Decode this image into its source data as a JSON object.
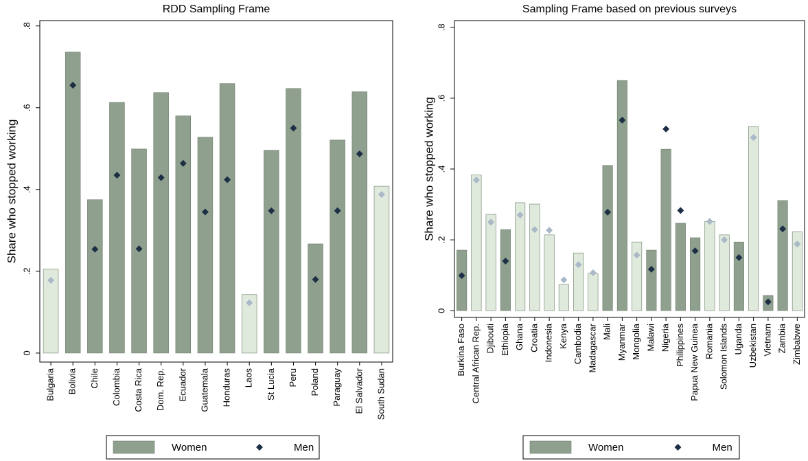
{
  "chart_data": [
    {
      "type": "bar",
      "title": "RDD Sampling Frame",
      "y_label": "Share who stopped working",
      "categories": [
        "Bulgaria",
        "Bolivia",
        "Chile",
        "Colombia",
        "Costa Rica",
        "Dom. Rep.",
        "Ecuador",
        "Guatemala",
        "Honduras",
        "Laos",
        "St Lucia",
        "Peru",
        "Poland",
        "Paraguay",
        "El Salvador",
        "South Sudan"
      ],
      "ylim": [
        -0.022,
        0.813
      ],
      "yticks": [
        0,
        {
          "value": 0.2,
          "label": ".2"
        },
        {
          "value": 0.4,
          "label": ".4"
        },
        {
          "value": 0.6,
          "label": ".6"
        },
        {
          "value": 0.8,
          "label": ".8"
        }
      ],
      "series": [
        {
          "name": "Women",
          "mark": "bar",
          "color": "#8fa18e",
          "colors": [
            "#dfeadc",
            "#8fa18e",
            "#8fa18e",
            "#8fa18e",
            "#8fa18e",
            "#8fa18e",
            "#8fa18e",
            "#8fa18e",
            "#8fa18e",
            "#dfeadc",
            "#8fa18e",
            "#8fa18e",
            "#8fa18e",
            "#8fa18e",
            "#8fa18e",
            "#dfeadc"
          ],
          "values": [
            0.205,
            0.736,
            0.375,
            0.613,
            0.499,
            0.637,
            0.58,
            0.528,
            0.659,
            0.143,
            0.496,
            0.647,
            0.267,
            0.521,
            0.639,
            0.408
          ]
        },
        {
          "name": "Men",
          "mark": "diamond",
          "color": "#1c2f45",
          "colors": [
            "#aab8c8",
            "#1c2f45",
            "#1c2f45",
            "#1c2f45",
            "#1c2f45",
            "#1c2f45",
            "#1c2f45",
            "#1c2f45",
            "#1c2f45",
            "#aab8c8",
            "#1c2f45",
            "#1c2f45",
            "#1c2f45",
            "#1c2f45",
            "#1c2f45",
            "#aab8c8"
          ],
          "values": [
            0.178,
            0.655,
            0.254,
            0.435,
            0.255,
            0.429,
            0.464,
            0.345,
            0.424,
            0.123,
            0.348,
            0.55,
            0.18,
            0.348,
            0.487,
            0.388
          ]
        }
      ]
    },
    {
      "type": "bar",
      "title": "Sampling Frame based on previous surveys",
      "y_label": "Share who stopped working",
      "categories": [
        "Burkina Faso",
        "Central African Rep.",
        "Djibouti",
        "Ethiopia",
        "Ghana",
        "Croatia",
        "Indonesia",
        "Kenya",
        "Cambodia",
        "Madagascar",
        "Mali",
        "Myanmar",
        "Mongolia",
        "Malawi",
        "Nigeria",
        "Philippines",
        "Papua New Guinea",
        "Romania",
        "Solomon Islands",
        "Uganda",
        "Uzbekistan",
        "Vietnam",
        "Zambia",
        "Zimbabwe"
      ],
      "ylim": [
        -0.019,
        0.819
      ],
      "yticks": [
        0,
        {
          "value": 0.2,
          "label": ".2"
        },
        {
          "value": 0.4,
          "label": ".4"
        },
        {
          "value": 0.6,
          "label": ".6"
        },
        {
          "value": 0.8,
          "label": ".8"
        }
      ],
      "series": [
        {
          "name": "Women",
          "mark": "bar",
          "color": "#8fa18e",
          "colors": [
            "#8fa18e",
            "#dfeadc",
            "#dfeadc",
            "#8fa18e",
            "#dfeadc",
            "#dfeadc",
            "#dfeadc",
            "#dfeadc",
            "#dfeadc",
            "#dfeadc",
            "#8fa18e",
            "#8fa18e",
            "#dfeadc",
            "#8fa18e",
            "#8fa18e",
            "#8fa18e",
            "#8fa18e",
            "#dfeadc",
            "#dfeadc",
            "#8fa18e",
            "#dfeadc",
            "#8fa18e",
            "#8fa18e",
            "#dfeadc"
          ],
          "values": [
            0.171,
            0.383,
            0.272,
            0.229,
            0.305,
            0.301,
            0.214,
            0.074,
            0.163,
            0.105,
            0.41,
            0.65,
            0.194,
            0.171,
            0.456,
            0.247,
            0.206,
            0.252,
            0.214,
            0.194,
            0.52,
            0.043,
            0.311,
            0.223
          ]
        },
        {
          "name": "Men",
          "mark": "diamond",
          "color": "#1c2f45",
          "colors": [
            "#1c2f45",
            "#aab8c8",
            "#aab8c8",
            "#1c2f45",
            "#aab8c8",
            "#aab8c8",
            "#aab8c8",
            "#aab8c8",
            "#aab8c8",
            "#aab8c8",
            "#1c2f45",
            "#1c2f45",
            "#aab8c8",
            "#1c2f45",
            "#1c2f45",
            "#1c2f45",
            "#1c2f45",
            "#aab8c8",
            "#aab8c8",
            "#1c2f45",
            "#aab8c8",
            "#1c2f45",
            "#1c2f45",
            "#aab8c8"
          ],
          "values": [
            0.099,
            0.369,
            0.25,
            0.14,
            0.27,
            0.229,
            0.227,
            0.087,
            0.13,
            0.107,
            0.278,
            0.538,
            0.157,
            0.117,
            0.513,
            0.283,
            0.169,
            0.252,
            0.2,
            0.15,
            0.489,
            0.025,
            0.231,
            0.188
          ]
        }
      ]
    }
  ]
}
